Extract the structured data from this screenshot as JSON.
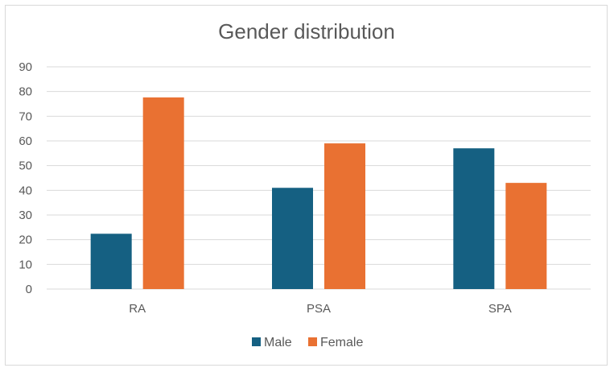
{
  "chart_data": {
    "type": "bar",
    "title": "Gender distribution",
    "categories": [
      "RA",
      "PSA",
      "SPA"
    ],
    "series": [
      {
        "name": "Male",
        "color": "#156082",
        "values": [
          22.4,
          41,
          57
        ]
      },
      {
        "name": "Female",
        "color": "#E97132",
        "values": [
          77.6,
          59,
          43
        ]
      }
    ],
    "ylim": [
      0,
      90
    ],
    "yticks": [
      0,
      10,
      20,
      30,
      40,
      50,
      60,
      70,
      80,
      90
    ],
    "xlabel": "",
    "ylabel": "",
    "grid": true,
    "legend_position": "bottom"
  }
}
